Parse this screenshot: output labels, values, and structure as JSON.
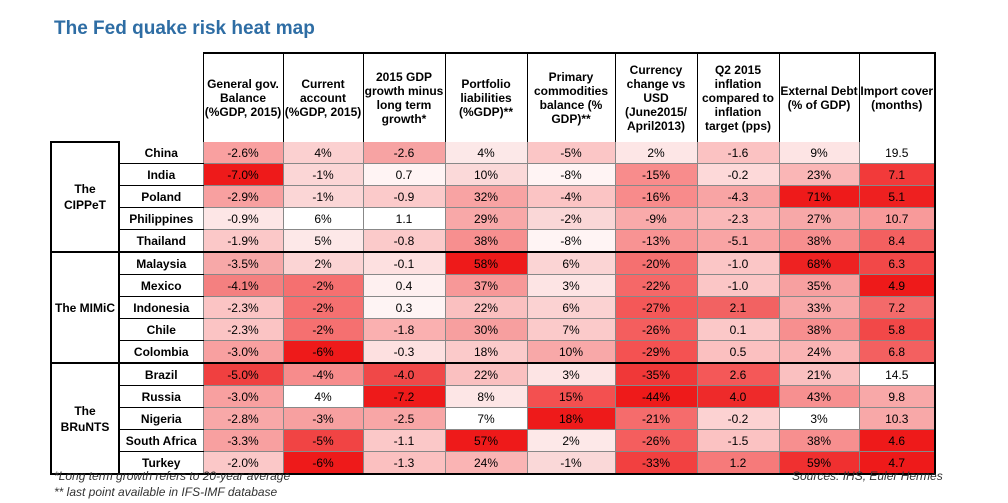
{
  "title": "The Fed quake risk heat map",
  "columns": [
    "General gov. Balance (%GDP, 2015)",
    "Current account (%GDP, 2015)",
    "2015 GDP growth minus long term growth*",
    "Portfolio liabilities (%GDP)**",
    "Primary commodities balance (% GDP)**",
    "Currency change vs USD (June2015/ April2013)",
    "Q2 2015 inflation compared to inflation target (pps)",
    "External Debt (% of GDP)",
    "Import cover (months)"
  ],
  "groups": [
    {
      "name": "The CIPPeT",
      "rows": [
        {
          "country": "China",
          "values": [
            "-2.6%",
            "4%",
            "-2.6",
            "4%",
            "-5%",
            "2%",
            "-1.6",
            "9%",
            "19.5"
          ],
          "colors": [
            "#f9a0a0",
            "#fbd0d0",
            "#f7a3a3",
            "#fce8e8",
            "#fbc6c6",
            "#fde6e6",
            "#fbc2c2",
            "#fde4e4",
            "#ffffff"
          ]
        },
        {
          "country": "India",
          "values": [
            "-7.0%",
            "-1%",
            "0.7",
            "10%",
            "-8%",
            "-15%",
            "-0.2",
            "23%",
            "7.1"
          ],
          "colors": [
            "#ee1a1a",
            "#fbd6d6",
            "#fff4f4",
            "#fbd9d9",
            "#fff4f4",
            "#f88c8c",
            "#fdd9d9",
            "#fab6b6",
            "#f23a3a"
          ]
        },
        {
          "country": "Poland",
          "values": [
            "-2.9%",
            "-1%",
            "-0.9",
            "32%",
            "-4%",
            "-16%",
            "-4.3",
            "71%",
            "5.1"
          ],
          "colors": [
            "#f8a0a0",
            "#fbd6d6",
            "#fbcaca",
            "#f8a3a3",
            "#fbc4c4",
            "#f88b8b",
            "#f8a4a4",
            "#ee1a1a",
            "#ee2020"
          ]
        },
        {
          "country": "Philippines",
          "values": [
            "-0.9%",
            "6%",
            "1.1",
            "29%",
            "-2%",
            "-9%",
            "-2.3",
            "27%",
            "10.7"
          ],
          "colors": [
            "#fde6e6",
            "#ffffff",
            "#ffffff",
            "#f8a8a8",
            "#fad7d7",
            "#f9aaaa",
            "#fab8b8",
            "#f7a8a8",
            "#f89a9a"
          ]
        },
        {
          "country": "Thailand",
          "values": [
            "-1.9%",
            "5%",
            "-0.8",
            "38%",
            "-8%",
            "-13%",
            "-5.1",
            "38%",
            "8.4"
          ],
          "colors": [
            "#fbc8c8",
            "#fde8e8",
            "#fbcaca",
            "#f78f8f",
            "#fff4f4",
            "#f89393",
            "#f9a4a4",
            "#f78f8f",
            "#f36060"
          ]
        }
      ]
    },
    {
      "name": "The MIMiC",
      "rows": [
        {
          "country": "Malaysia",
          "values": [
            "-3.5%",
            "2%",
            "-0.1",
            "58%",
            "6%",
            "-20%",
            "-1.0",
            "68%",
            "6.3"
          ],
          "colors": [
            "#f7a8a8",
            "#fbd4d4",
            "#fde0e0",
            "#ee1a1a",
            "#fbd4d4",
            "#f57070",
            "#fbc6c6",
            "#ee2222",
            "#f24848"
          ]
        },
        {
          "country": "Mexico",
          "values": [
            "-4.1%",
            "-2%",
            "0.4",
            "37%",
            "3%",
            "-22%",
            "-1.0",
            "35%",
            "4.9"
          ],
          "colors": [
            "#f48080",
            "#f57070",
            "#fef0f0",
            "#f79898",
            "#fde4e4",
            "#f56868",
            "#fbc6c6",
            "#f7a0a0",
            "#ee1a1a"
          ]
        },
        {
          "country": "Indonesia",
          "values": [
            "-2.3%",
            "-2%",
            "0.3",
            "22%",
            "6%",
            "-27%",
            "2.1",
            "33%",
            "7.2"
          ],
          "colors": [
            "#fbc4c4",
            "#f57070",
            "#fef4f4",
            "#fac0c0",
            "#fbd2d2",
            "#f45858",
            "#f26262",
            "#f8a8a8",
            "#f36a6a"
          ]
        },
        {
          "country": "Chile",
          "values": [
            "-2.3%",
            "-2%",
            "-1.8",
            "30%",
            "7%",
            "-26%",
            "0.1",
            "38%",
            "5.8"
          ],
          "colors": [
            "#fbc4c4",
            "#f57070",
            "#fab0b0",
            "#f79f9f",
            "#fbcaca",
            "#f45e5e",
            "#fbc8c8",
            "#f78f8f",
            "#f24848"
          ]
        },
        {
          "country": "Colombia",
          "values": [
            "-3.0%",
            "-6%",
            "-0.3",
            "18%",
            "10%",
            "-29%",
            "0.5",
            "24%",
            "6.8"
          ],
          "colors": [
            "#f8a0a0",
            "#ee1a1a",
            "#fde0e0",
            "#fbcaca",
            "#f8a8a8",
            "#f45252",
            "#fbc0c0",
            "#fab4b4",
            "#f36060"
          ]
        }
      ]
    },
    {
      "name": "The BRuNTS",
      "rows": [
        {
          "country": "Brazil",
          "values": [
            "-5.0%",
            "-4%",
            "-4.0",
            "22%",
            "3%",
            "-35%",
            "2.6",
            "21%",
            "14.5"
          ],
          "colors": [
            "#f04040",
            "#f78c8c",
            "#f04848",
            "#fac0c0",
            "#fde4e4",
            "#f03838",
            "#f45858",
            "#fac0c0",
            "#ffffff"
          ]
        },
        {
          "country": "Russia",
          "values": [
            "-3.0%",
            "4%",
            "-7.2",
            "8%",
            "15%",
            "-44%",
            "4.0",
            "43%",
            "9.8"
          ],
          "colors": [
            "#f8a0a0",
            "#ffffff",
            "#ee1a1a",
            "#fde6e6",
            "#f35050",
            "#ee1a1a",
            "#ee2a2a",
            "#f79090",
            "#f8a8a8"
          ]
        },
        {
          "country": "Nigeria",
          "values": [
            "-2.8%",
            "-3%",
            "-2.5",
            "7%",
            "18%",
            "-21%",
            "-0.2",
            "3%",
            "10.3"
          ],
          "colors": [
            "#f8a8a8",
            "#f7a0a0",
            "#f8a6a6",
            "#ffffff",
            "#ee1a1a",
            "#f56c6c",
            "#fcd2d2",
            "#ffffff",
            "#f8a8a8"
          ]
        },
        {
          "country": "South Africa",
          "values": [
            "-3.3%",
            "-5%",
            "-1.1",
            "57%",
            "2%",
            "-26%",
            "-1.5",
            "38%",
            "4.6"
          ],
          "colors": [
            "#f8a0a0",
            "#f14444",
            "#fbc8c8",
            "#ee1a1a",
            "#fde8e8",
            "#f45e5e",
            "#fbc2c2",
            "#f78f8f",
            "#ee1a1a"
          ]
        },
        {
          "country": "Turkey",
          "values": [
            "-2.0%",
            "-6%",
            "-1.3",
            "24%",
            "-1%",
            "-33%",
            "1.2",
            "59%",
            "4.7"
          ],
          "colors": [
            "#fbc8c8",
            "#ee1a1a",
            "#fbc0c0",
            "#fab4b4",
            "#fad8d8",
            "#f24040",
            "#f67a7a",
            "#f03030",
            "#ee1a1a"
          ]
        }
      ]
    }
  ],
  "footnotes": {
    "note1": "*Long term growth refers to 20-year average",
    "note2": "** last point available in IFS-IMF database",
    "sources": "Sources: IHS, Euler Hermes"
  },
  "chart_data": {
    "type": "heatmap",
    "title": "The Fed quake risk heat map",
    "x": [
      "General gov. Balance (%GDP, 2015)",
      "Current account (%GDP, 2015)",
      "2015 GDP growth minus long term growth*",
      "Portfolio liabilities (%GDP)**",
      "Primary commodities balance (% GDP)**",
      "Currency change vs USD (June2015/ April2013)",
      "Q2 2015 inflation compared to inflation target (pps)",
      "External Debt (% of GDP)",
      "Import cover (months)"
    ],
    "y": [
      "China",
      "India",
      "Poland",
      "Philippines",
      "Thailand",
      "Malaysia",
      "Mexico",
      "Indonesia",
      "Chile",
      "Colombia",
      "Brazil",
      "Russia",
      "Nigeria",
      "South Africa",
      "Turkey"
    ]
  }
}
